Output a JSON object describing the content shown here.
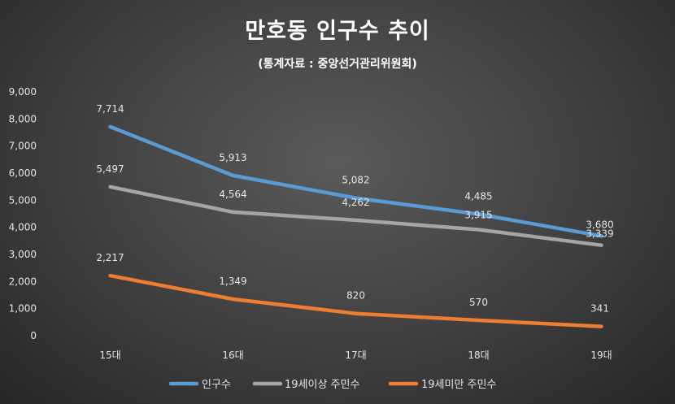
{
  "title": "만호동 인구수 추이",
  "subtitle": "(통계자료 : 중앙선거관리위원회)",
  "chart_data": {
    "type": "line",
    "title": "만호동 인구수 추이",
    "subtitle": "(통계자료 : 중앙선거관리위원회)",
    "categories": [
      "15대",
      "16대",
      "17대",
      "18대",
      "19대"
    ],
    "ylim": [
      0,
      9000
    ],
    "yticks": [
      0,
      1000,
      2000,
      3000,
      4000,
      5000,
      6000,
      7000,
      8000,
      9000
    ],
    "ytick_labels": [
      "0",
      "1,000",
      "2,000",
      "3,000",
      "4,000",
      "5,000",
      "6,000",
      "7,000",
      "8,000",
      "9,000"
    ],
    "grid": false,
    "legend_position": "bottom",
    "series": [
      {
        "name": "인구수",
        "values": [
          7714,
          5913,
          5082,
          4485,
          3680
        ],
        "labels": [
          "7,714",
          "5,913",
          "5,082",
          "4,485",
          "3,680"
        ],
        "color": "#5b9bd5"
      },
      {
        "name": "19세이상 주민수",
        "values": [
          5497,
          4564,
          4262,
          3915,
          3339
        ],
        "labels": [
          "5,497",
          "4,564",
          "4,262",
          "3,915",
          "3,339"
        ],
        "color": "#a5a5a5"
      },
      {
        "name": "19세미만 주민수",
        "values": [
          2217,
          1349,
          820,
          570,
          341
        ],
        "labels": [
          "2,217",
          "1,349",
          "820",
          "570",
          "341"
        ],
        "color": "#ed7d31"
      }
    ]
  }
}
